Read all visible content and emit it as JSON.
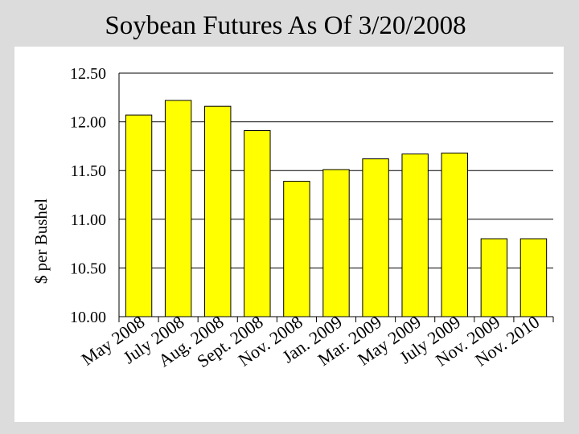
{
  "title": "Soybean Futures As Of 3/20/2008",
  "chart_data": {
    "type": "bar",
    "categories": [
      "May 2008",
      "July 2008",
      "Aug. 2008",
      "Sept. 2008",
      "Nov. 2008",
      "Jan. 2009",
      "Mar. 2009",
      "May 2009",
      "July 2009",
      "Nov. 2009",
      "Nov. 2010"
    ],
    "values": [
      12.07,
      12.22,
      12.16,
      11.91,
      11.39,
      11.51,
      11.62,
      11.67,
      11.68,
      10.8,
      10.8
    ],
    "ylabel": "$ per Bushel",
    "xlabel": "",
    "ylim": [
      10.0,
      12.5
    ],
    "yticks": [
      "10.00",
      "10.50",
      "11.00",
      "11.50",
      "12.00",
      "12.50"
    ],
    "bar_color": "#ffff00",
    "bar_edge_color": "#000000",
    "grid": true,
    "legend": "none"
  }
}
